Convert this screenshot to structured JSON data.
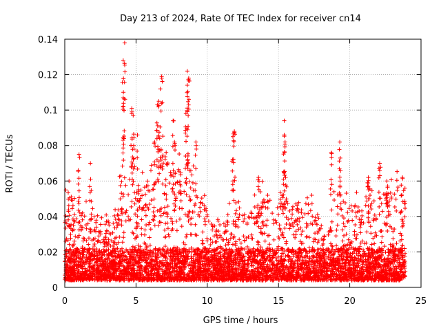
{
  "chart_data": {
    "type": "scatter",
    "title": "Day 213 of 2024, Rate Of TEC Index for receiver cn14",
    "xlabel": "GPS time / hours",
    "ylabel": "ROTI / TECUs",
    "xlim": [
      0,
      25
    ],
    "ylim": [
      0,
      0.14
    ],
    "x_ticks": [
      0,
      5,
      10,
      15,
      20,
      25
    ],
    "y_ticks": [
      0,
      0.02,
      0.04,
      0.06,
      0.08,
      0.1,
      0.12,
      0.14
    ],
    "x_tick_labels": [
      "0",
      "5",
      "10",
      "15",
      "20",
      "25"
    ],
    "y_tick_labels": [
      "0",
      "0.02",
      "0.04",
      "0.06",
      "0.08",
      "0.1",
      "0.12",
      "0.14"
    ],
    "grid": true,
    "marker": "plus",
    "point_color": "#ff0000",
    "data_range_hours": [
      0,
      23.9
    ],
    "series": [
      {
        "name": "ROTI",
        "notable_points": [
          {
            "x": 4.2,
            "y": 0.138
          },
          {
            "x": 4.1,
            "y": 0.128
          },
          {
            "x": 4.1,
            "y": 0.107
          },
          {
            "x": 4.7,
            "y": 0.101
          },
          {
            "x": 4.8,
            "y": 0.097
          },
          {
            "x": 6.8,
            "y": 0.119
          },
          {
            "x": 6.7,
            "y": 0.112
          },
          {
            "x": 6.6,
            "y": 0.105
          },
          {
            "x": 6.5,
            "y": 0.103
          },
          {
            "x": 8.6,
            "y": 0.122
          },
          {
            "x": 8.7,
            "y": 0.118
          },
          {
            "x": 8.6,
            "y": 0.114
          },
          {
            "x": 8.5,
            "y": 0.098
          },
          {
            "x": 9.2,
            "y": 0.082
          },
          {
            "x": 11.9,
            "y": 0.088
          },
          {
            "x": 11.8,
            "y": 0.085
          },
          {
            "x": 15.4,
            "y": 0.094
          },
          {
            "x": 15.4,
            "y": 0.086
          },
          {
            "x": 15.5,
            "y": 0.062
          },
          {
            "x": 18.7,
            "y": 0.076
          },
          {
            "x": 19.3,
            "y": 0.082
          },
          {
            "x": 7.6,
            "y": 0.094
          },
          {
            "x": 7.7,
            "y": 0.082
          },
          {
            "x": 1.0,
            "y": 0.075
          },
          {
            "x": 1.8,
            "y": 0.07
          },
          {
            "x": 0.3,
            "y": 0.06
          },
          {
            "x": 13.6,
            "y": 0.062
          },
          {
            "x": 22.1,
            "y": 0.07
          },
          {
            "x": 22.6,
            "y": 0.06
          },
          {
            "x": 23.7,
            "y": 0.062
          },
          {
            "x": 21.3,
            "y": 0.062
          },
          {
            "x": 5.1,
            "y": 0.086
          },
          {
            "x": 6.3,
            "y": 0.082
          }
        ],
        "activity_envelope": {
          "hours": [
            0,
            0.5,
            1,
            1.5,
            2,
            2.5,
            3,
            3.5,
            4,
            4.5,
            5,
            5.5,
            6,
            6.5,
            7,
            7.5,
            8,
            8.5,
            9,
            9.5,
            10,
            10.5,
            11,
            11.5,
            12,
            12.5,
            13,
            13.5,
            14,
            14.5,
            15,
            15.5,
            16,
            16.5,
            17,
            17.5,
            18,
            18.5,
            19,
            19.5,
            20,
            20.5,
            21,
            21.5,
            22,
            22.5,
            23,
            23.5,
            23.9
          ],
          "typical_max": [
            0.05,
            0.045,
            0.04,
            0.035,
            0.036,
            0.034,
            0.032,
            0.038,
            0.058,
            0.068,
            0.062,
            0.05,
            0.06,
            0.068,
            0.07,
            0.06,
            0.06,
            0.065,
            0.062,
            0.05,
            0.035,
            0.03,
            0.03,
            0.036,
            0.046,
            0.04,
            0.036,
            0.044,
            0.05,
            0.042,
            0.044,
            0.05,
            0.045,
            0.042,
            0.045,
            0.04,
            0.03,
            0.03,
            0.048,
            0.045,
            0.042,
            0.04,
            0.045,
            0.05,
            0.05,
            0.048,
            0.046,
            0.055,
            0.05
          ]
        }
      }
    ]
  }
}
